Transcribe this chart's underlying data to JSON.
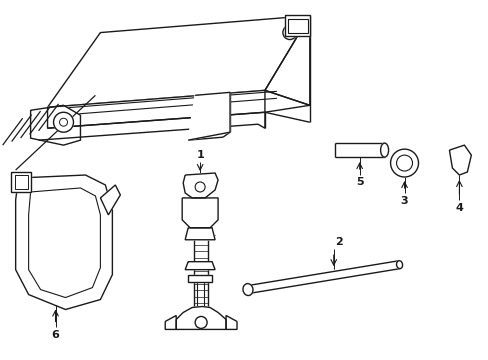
{
  "background_color": "#ffffff",
  "line_color": "#1a1a1a",
  "line_width": 1.0,
  "label_fontsize": 8,
  "figsize": [
    4.89,
    3.6
  ],
  "dpi": 100
}
